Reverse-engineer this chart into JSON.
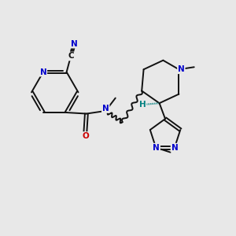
{
  "background_color": "#e8e8e8",
  "fig_width": 3.0,
  "fig_height": 3.0,
  "dpi": 100,
  "atom_colors": {
    "N": "#0000cc",
    "O": "#cc0000",
    "C": "#111111",
    "H": "#008080"
  },
  "bond_color": "#111111",
  "bond_width": 1.4,
  "font_size_atom": 7.5
}
